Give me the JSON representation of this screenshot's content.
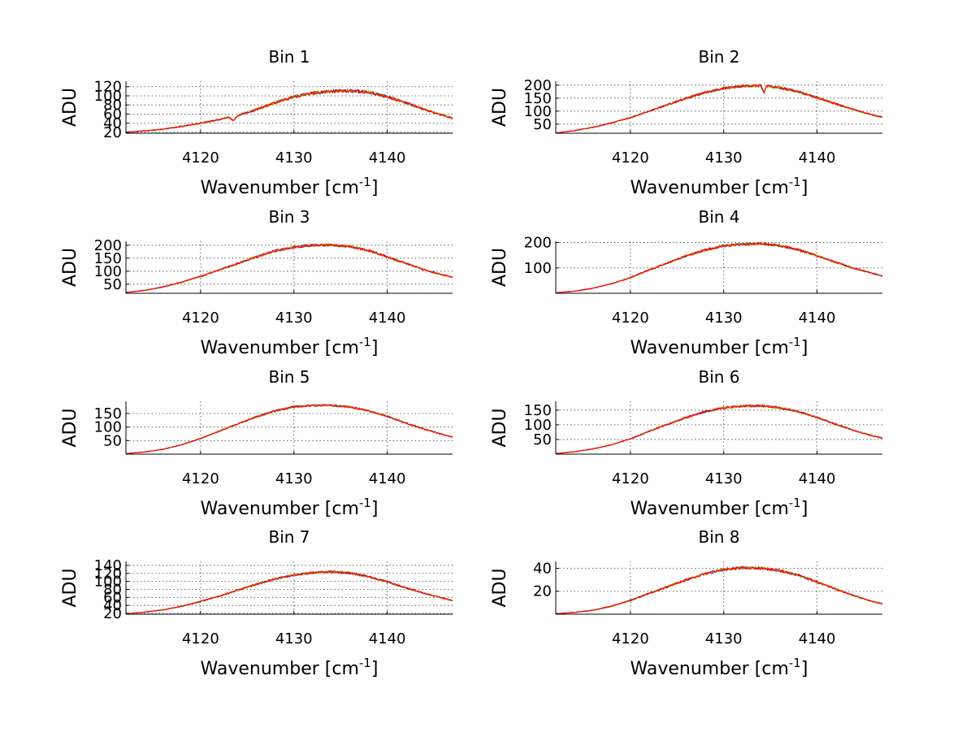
{
  "chart_data": [
    {
      "type": "line",
      "title": "Bin 1",
      "xlabel_main": "Wavenumber [cm",
      "xlabel_sup": "-1",
      "xlabel_tail": "]",
      "ylabel": "ADU",
      "xlim": [
        4112,
        4147
      ],
      "ylim": [
        18,
        132
      ],
      "xticks": [
        4120,
        4130,
        4140
      ],
      "yticks": [
        20,
        40,
        60,
        80,
        100,
        120
      ],
      "ytick_labels": [
        "20",
        "40",
        "60",
        "80",
        "100",
        "120"
      ],
      "grid": true,
      "x": [
        4112,
        4114,
        4116,
        4118,
        4120,
        4122,
        4123,
        4123.5,
        4124,
        4126,
        4128,
        4130,
        4132,
        4134,
        4136,
        4138,
        4140,
        4142,
        4144,
        4146,
        4147
      ],
      "series": [
        {
          "color": "#ff0000",
          "values": [
            20,
            23,
            27,
            33,
            40,
            48,
            53,
            46,
            57,
            70,
            85,
            98,
            106,
            110,
            111,
            108,
            98,
            85,
            70,
            57,
            51
          ]
        }
      ],
      "noise_amp": 3
    },
    {
      "type": "line",
      "title": "Bin 2",
      "xlabel_main": "Wavenumber [cm",
      "xlabel_sup": "-1",
      "xlabel_tail": "]",
      "ylabel": "ADU",
      "xlim": [
        4112,
        4147
      ],
      "ylim": [
        15,
        215
      ],
      "xticks": [
        4120,
        4130,
        4140
      ],
      "yticks": [
        50,
        100,
        150,
        200
      ],
      "ytick_labels": [
        "50",
        "100",
        "150",
        "200"
      ],
      "grid": true,
      "x": [
        4112,
        4114,
        4116,
        4118,
        4120,
        4122,
        4124,
        4126,
        4128,
        4130,
        4132,
        4134,
        4134.3,
        4134.6,
        4136,
        4138,
        4140,
        4142,
        4144,
        4146,
        4147
      ],
      "series": [
        {
          "color": "#ff0000",
          "values": [
            16,
            25,
            38,
            55,
            75,
            100,
            125,
            150,
            172,
            188,
            196,
            198,
            170,
            196,
            190,
            175,
            152,
            128,
            105,
            85,
            77
          ]
        }
      ],
      "noise_amp": 4
    },
    {
      "type": "line",
      "title": "Bin 3",
      "xlabel_main": "Wavenumber [cm",
      "xlabel_sup": "-1",
      "xlabel_tail": "]",
      "ylabel": "ADU",
      "xlim": [
        4112,
        4147
      ],
      "ylim": [
        15,
        215
      ],
      "xticks": [
        4120,
        4130,
        4140
      ],
      "yticks": [
        50,
        100,
        150,
        200
      ],
      "ytick_labels": [
        "50",
        "100",
        "150",
        "200"
      ],
      "grid": true,
      "x": [
        4112,
        4114,
        4116,
        4118,
        4120,
        4122,
        4124,
        4126,
        4128,
        4130,
        4132,
        4134,
        4136,
        4138,
        4140,
        4142,
        4144,
        4146,
        4147
      ],
      "series": [
        {
          "color": "#ff0000",
          "values": [
            18,
            26,
            40,
            58,
            80,
            105,
            130,
            155,
            178,
            192,
            200,
            201,
            195,
            180,
            155,
            130,
            105,
            85,
            77
          ]
        }
      ],
      "noise_amp": 4
    },
    {
      "type": "line",
      "title": "Bin 4",
      "xlabel_main": "Wavenumber [cm",
      "xlabel_sup": "-1",
      "xlabel_tail": "]",
      "ylabel": "ADU",
      "xlim": [
        4112,
        4147
      ],
      "ylim": [
        0,
        205
      ],
      "xticks": [
        4120,
        4130,
        4140
      ],
      "yticks": [
        100,
        200
      ],
      "ytick_labels": [
        "100",
        "200"
      ],
      "grid": true,
      "x": [
        4112,
        4114,
        4116,
        4118,
        4120,
        4122,
        4124,
        4126,
        4128,
        4130,
        4132,
        4134,
        4136,
        4138,
        4140,
        4142,
        4144,
        4146,
        4147
      ],
      "series": [
        {
          "color": "#ff0000",
          "values": [
            2,
            8,
            20,
            38,
            62,
            92,
            120,
            148,
            170,
            188,
            193,
            196,
            188,
            172,
            148,
            122,
            98,
            78,
            68
          ]
        }
      ],
      "noise_amp": 4
    },
    {
      "type": "line",
      "title": "Bin 5",
      "xlabel_main": "Wavenumber [cm",
      "xlabel_sup": "-1",
      "xlabel_tail": "]",
      "ylabel": "ADU",
      "xlim": [
        4112,
        4147
      ],
      "ylim": [
        0,
        195
      ],
      "xticks": [
        4120,
        4130,
        4140
      ],
      "yticks": [
        50,
        100,
        150
      ],
      "ytick_labels": [
        "50",
        "100",
        "150"
      ],
      "grid": true,
      "x": [
        4112,
        4114,
        4116,
        4118,
        4120,
        4122,
        4124,
        4126,
        4128,
        4130,
        4132,
        4134,
        4136,
        4138,
        4140,
        4142,
        4144,
        4146,
        4147
      ],
      "series": [
        {
          "color": "#ff0000",
          "values": [
            2,
            8,
            18,
            35,
            58,
            85,
            112,
            138,
            160,
            175,
            180,
            180,
            174,
            160,
            140,
            115,
            92,
            72,
            63
          ]
        }
      ],
      "noise_amp": 3
    },
    {
      "type": "line",
      "title": "Bin 6",
      "xlabel_main": "Wavenumber [cm",
      "xlabel_sup": "-1",
      "xlabel_tail": "]",
      "ylabel": "ADU",
      "xlim": [
        4112,
        4147
      ],
      "ylim": [
        0,
        180
      ],
      "xticks": [
        4120,
        4130,
        4140
      ],
      "yticks": [
        50,
        100,
        150
      ],
      "ytick_labels": [
        "50",
        "100",
        "150"
      ],
      "grid": true,
      "x": [
        4112,
        4114,
        4116,
        4118,
        4120,
        4122,
        4124,
        4126,
        4128,
        4130,
        4132,
        4134,
        4136,
        4138,
        4140,
        4142,
        4144,
        4146,
        4147
      ],
      "series": [
        {
          "color": "#ff0000",
          "values": [
            2,
            8,
            18,
            32,
            52,
            78,
            102,
            125,
            145,
            158,
            164,
            165,
            158,
            145,
            125,
            102,
            80,
            62,
            55
          ]
        }
      ],
      "noise_amp": 3
    },
    {
      "type": "line",
      "title": "Bin 7",
      "xlabel_main": "Wavenumber [cm",
      "xlabel_sup": "-1",
      "xlabel_tail": "]",
      "ylabel": "ADU",
      "xlim": [
        4112,
        4147
      ],
      "ylim": [
        18,
        150
      ],
      "xticks": [
        4120,
        4130,
        4140
      ],
      "yticks": [
        20,
        40,
        60,
        80,
        100,
        120,
        140
      ],
      "ytick_labels": [
        "20",
        "40",
        "60",
        "80",
        "100",
        "120",
        "140"
      ],
      "grid": true,
      "x": [
        4112,
        4114,
        4116,
        4118,
        4120,
        4122,
        4124,
        4126,
        4128,
        4130,
        4132,
        4134,
        4136,
        4138,
        4140,
        4142,
        4144,
        4146,
        4147
      ],
      "series": [
        {
          "color": "#ff0000",
          "values": [
            19,
            23,
            29,
            38,
            50,
            63,
            78,
            93,
            106,
            116,
            122,
            124,
            121,
            112,
            99,
            84,
            70,
            58,
            52
          ]
        }
      ],
      "noise_amp": 2.5
    },
    {
      "type": "line",
      "title": "Bin 8",
      "xlabel_main": "Wavenumber [cm",
      "xlabel_sup": "-1",
      "xlabel_tail": "]",
      "ylabel": "ADU",
      "xlim": [
        4112,
        4147
      ],
      "ylim": [
        0,
        46
      ],
      "xticks": [
        4120,
        4130,
        4140
      ],
      "yticks": [
        20,
        40
      ],
      "ytick_labels": [
        "20",
        "40"
      ],
      "grid": true,
      "x": [
        4112,
        4114,
        4116,
        4118,
        4120,
        4122,
        4124,
        4126,
        4128,
        4130,
        4132,
        4134,
        4136,
        4138,
        4140,
        4142,
        4144,
        4146,
        4147
      ],
      "series": [
        {
          "color": "#ff0000",
          "values": [
            0.5,
            1.5,
            3.5,
            7,
            12,
            18,
            24,
            30,
            35,
            39,
            40.5,
            40,
            38,
            34,
            28,
            22,
            16,
            11,
            9
          ]
        }
      ],
      "noise_amp": 1
    }
  ],
  "overlay_colors": [
    "#0000ff",
    "#00aa00",
    "#ff9900"
  ]
}
